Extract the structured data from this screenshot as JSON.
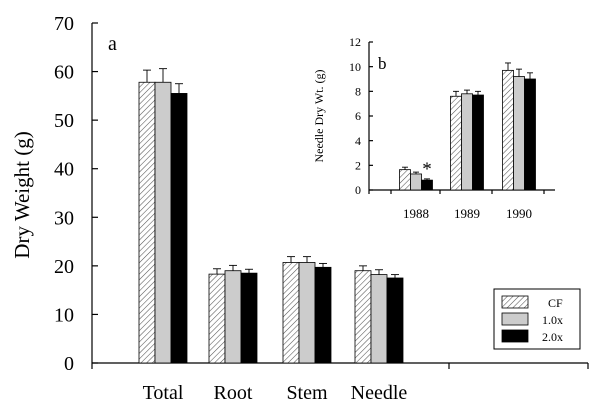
{
  "chart_data": [
    {
      "panel_label": "a",
      "type": "bar",
      "ylabel": "Dry Weight (g)",
      "xlabel": "",
      "ylim": [
        0,
        70
      ],
      "yticks": [
        0,
        10,
        20,
        30,
        40,
        50,
        60,
        70
      ],
      "categories": [
        "Total",
        "Root",
        "Stem",
        "Needle"
      ],
      "series": [
        {
          "name": "CF",
          "values": [
            57.8,
            18.3,
            20.7,
            19.0
          ],
          "errors": [
            2.5,
            1.1,
            1.2,
            1.0
          ],
          "color": "#ffffff",
          "pattern": "hatch"
        },
        {
          "name": "1.0x",
          "values": [
            57.8,
            19.0,
            20.7,
            18.2
          ],
          "errors": [
            2.8,
            1.1,
            1.2,
            1.0
          ],
          "color": "#cccccc",
          "pattern": "solid"
        },
        {
          "name": "2.0x",
          "values": [
            55.5,
            18.5,
            19.7,
            17.5
          ],
          "errors": [
            2.0,
            0.8,
            0.8,
            0.7
          ],
          "color": "#000000",
          "pattern": "solid"
        }
      ],
      "legend_position": "bottom-right"
    },
    {
      "panel_label": "b",
      "type": "bar",
      "ylabel": "Needle Dry Wt. (g)",
      "xlabel": "",
      "ylim": [
        0,
        12
      ],
      "yticks": [
        0,
        2,
        4,
        6,
        8,
        10,
        12
      ],
      "categories": [
        "1988",
        "1989",
        "1990"
      ],
      "series": [
        {
          "name": "CF",
          "values": [
            1.65,
            7.6,
            9.7
          ],
          "errors": [
            0.2,
            0.4,
            0.6
          ]
        },
        {
          "name": "1.0x",
          "values": [
            1.3,
            7.8,
            9.2
          ],
          "errors": [
            0.15,
            0.3,
            0.6
          ]
        },
        {
          "name": "2.0x",
          "values": [
            0.8,
            7.7,
            9.0
          ],
          "errors": [
            0.1,
            0.3,
            0.5
          ]
        }
      ],
      "annotations": [
        {
          "text": "*",
          "category": "1988"
        }
      ]
    }
  ],
  "legend": {
    "items": [
      {
        "label": "CF",
        "pattern": "hatch"
      },
      {
        "label": "1.0x",
        "pattern": "gray"
      },
      {
        "label": "2.0x",
        "pattern": "black"
      }
    ]
  }
}
